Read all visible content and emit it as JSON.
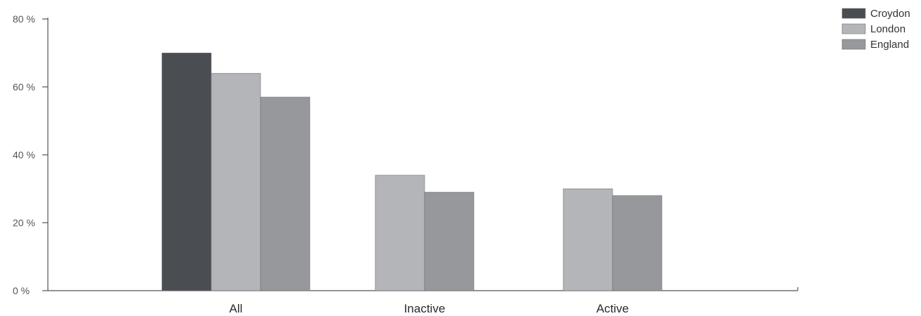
{
  "chart_data": {
    "type": "bar",
    "title": "",
    "xlabel": "",
    "ylabel": "",
    "categories": [
      "All",
      "Inactive",
      "Active"
    ],
    "series": [
      {
        "name": "Croydon",
        "color": "#4a4d51",
        "values": [
          70,
          null,
          null
        ]
      },
      {
        "name": "London",
        "color": "#b3b5b8",
        "values": [
          64,
          34,
          30
        ]
      },
      {
        "name": "England",
        "color": "#96989b",
        "values": [
          57,
          29,
          28
        ]
      }
    ],
    "ylim": [
      0,
      80
    ],
    "yticks": [
      0,
      20,
      40,
      60,
      80
    ],
    "ytick_labels": [
      "0 %",
      "20 %",
      "40 %",
      "60 %",
      "80 %"
    ],
    "grid": false,
    "legend_position": "top-right"
  }
}
